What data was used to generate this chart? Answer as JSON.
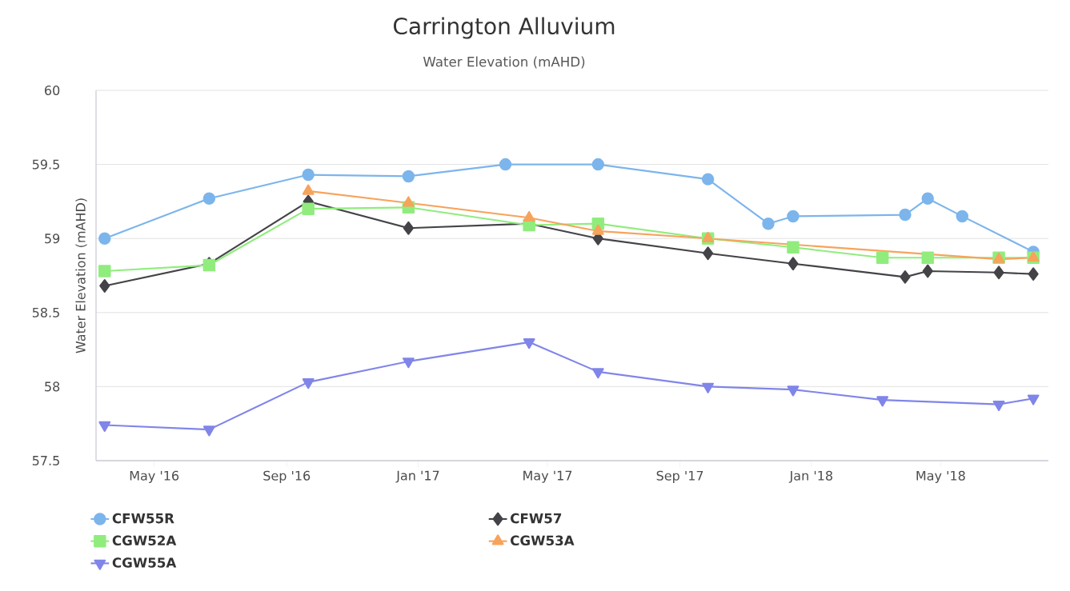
{
  "chart_data": {
    "type": "line",
    "title": "Carrington Alluvium",
    "subtitle": "Water Elevation (mAHD)",
    "ylabel": "Water Elevation (mAHD)",
    "xlim": [
      "2016-03-08",
      "2018-08-09"
    ],
    "xticks": [
      {
        "value": "2016-05-01",
        "label": "May '16"
      },
      {
        "value": "2016-09-01",
        "label": "Sep '16"
      },
      {
        "value": "2017-01-01",
        "label": "Jan '17"
      },
      {
        "value": "2017-05-01",
        "label": "May '17"
      },
      {
        "value": "2017-09-01",
        "label": "Sep '17"
      },
      {
        "value": "2018-01-01",
        "label": "Jan '18"
      },
      {
        "value": "2018-05-01",
        "label": "May '18"
      }
    ],
    "ylim": [
      57.5,
      60
    ],
    "yticks": [
      57.5,
      58,
      58.5,
      59,
      59.5,
      60
    ],
    "grid": "y",
    "legend": "bottom",
    "series": [
      {
        "name": "CFW55R",
        "color": "#7cb5ec",
        "marker": "circle",
        "x": [
          "2016-03-16",
          "2016-06-21",
          "2016-09-21",
          "2016-12-23",
          "2017-03-23",
          "2017-06-17",
          "2017-09-27",
          "2017-11-22",
          "2017-12-15",
          "2018-03-29",
          "2018-04-19",
          "2018-05-21",
          "2018-07-26"
        ],
        "values": [
          59.0,
          59.27,
          59.43,
          59.42,
          59.5,
          59.5,
          59.4,
          59.1,
          59.15,
          59.16,
          59.27,
          59.15,
          58.91
        ]
      },
      {
        "name": "CFW57",
        "color": "#434348",
        "marker": "diamond",
        "x": [
          "2016-03-16",
          "2016-06-21",
          "2016-09-21",
          "2016-12-23",
          "2017-04-14",
          "2017-06-17",
          "2017-09-27",
          "2017-12-15",
          "2018-03-29",
          "2018-04-19",
          "2018-06-24",
          "2018-07-26"
        ],
        "values": [
          58.68,
          58.83,
          59.25,
          59.07,
          59.1,
          59.0,
          58.9,
          58.83,
          58.74,
          58.78,
          58.77,
          58.76
        ]
      },
      {
        "name": "CGW52A",
        "color": "#90ed7d",
        "marker": "square",
        "x": [
          "2016-03-16",
          "2016-06-21",
          "2016-09-21",
          "2016-12-23",
          "2017-04-14",
          "2017-06-17",
          "2017-09-27",
          "2017-12-15",
          "2018-03-08",
          "2018-04-19",
          "2018-06-24",
          "2018-07-26"
        ],
        "values": [
          58.78,
          58.82,
          59.2,
          59.21,
          59.09,
          59.1,
          59.0,
          58.94,
          58.87,
          58.87,
          58.87,
          58.87
        ]
      },
      {
        "name": "CGW53A",
        "color": "#f7a35c",
        "marker": "triangle",
        "x": [
          "2016-09-21",
          "2016-12-23",
          "2017-04-14",
          "2017-06-17",
          "2017-09-27",
          "2018-06-24",
          "2018-07-26"
        ],
        "values": [
          59.32,
          59.24,
          59.14,
          59.05,
          59.0,
          58.86,
          58.87
        ]
      },
      {
        "name": "CGW55A",
        "color": "#8085e9",
        "marker": "triangle-down",
        "x": [
          "2016-03-16",
          "2016-06-21",
          "2016-09-21",
          "2016-12-23",
          "2017-04-14",
          "2017-06-17",
          "2017-09-27",
          "2017-12-15",
          "2018-03-08",
          "2018-06-24",
          "2018-07-26"
        ],
        "values": [
          57.74,
          57.71,
          58.03,
          58.17,
          58.3,
          58.1,
          58.0,
          57.98,
          57.91,
          57.88,
          57.92
        ]
      }
    ]
  }
}
